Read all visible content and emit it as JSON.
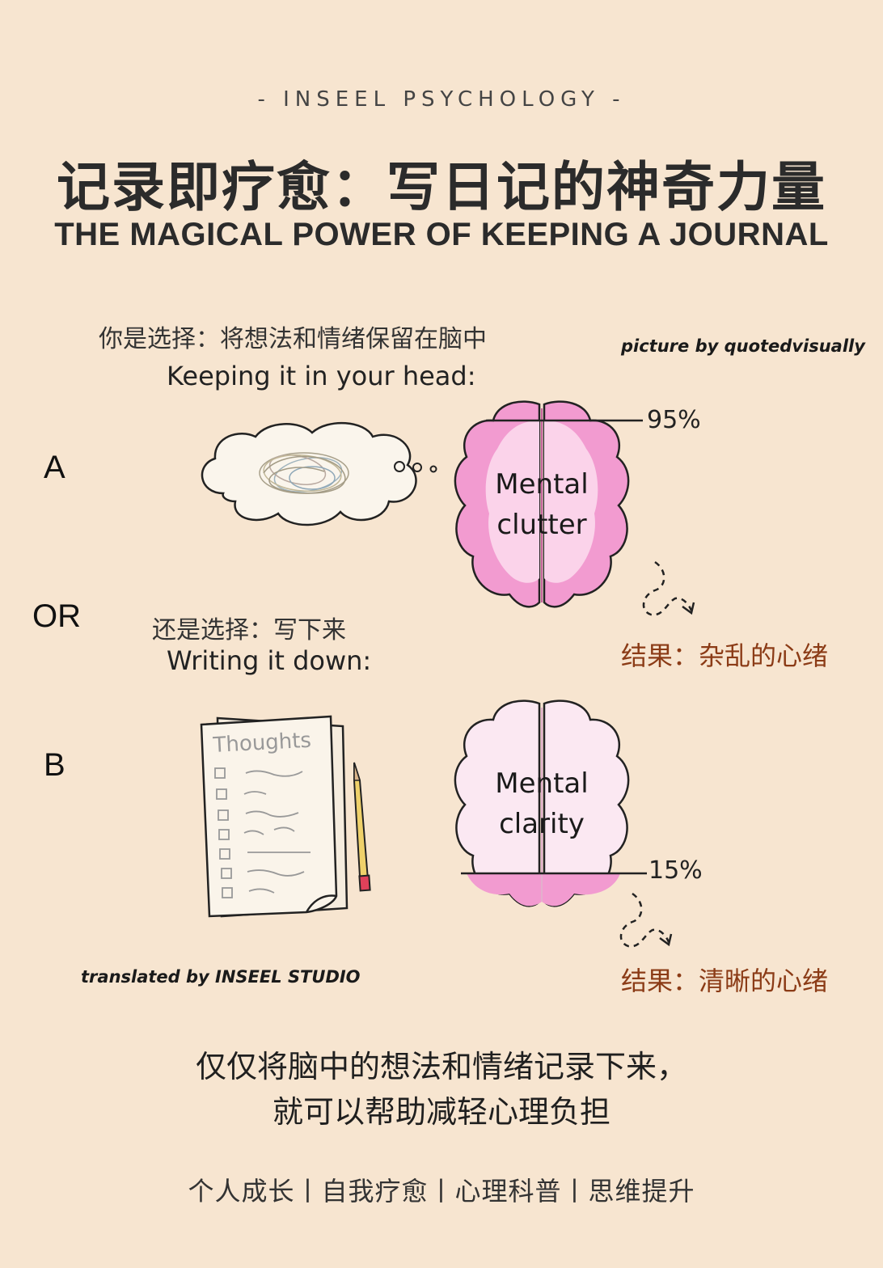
{
  "header": {
    "brand": "- INSEEL PSYCHOLOGY -",
    "title_zh": "记录即疗愈：写日记的神奇力量",
    "title_en": "THE MAGICAL POWER OF KEEPING A JOURNAL"
  },
  "credits": {
    "picture": "picture by quotedvisually",
    "translation": "translated by INSEEL STUDIO"
  },
  "option_a": {
    "letter": "A",
    "caption_zh": "你是选择：将想法和情绪保留在脑中",
    "caption_en": "Keeping it in your head:",
    "brain_line1": "Mental",
    "brain_line2": "clutter",
    "percent": "95%",
    "percent_value": 95,
    "result": "结果：杂乱的心绪",
    "brain_color": "#f29bd0"
  },
  "or_label": "OR",
  "option_b": {
    "letter": "B",
    "caption_zh": "还是选择：写下来",
    "caption_en": "Writing it down:",
    "paper_title": "Thoughts",
    "brain_line1": "Mental",
    "brain_line2": "clarity",
    "percent": "15%",
    "percent_value": 15,
    "result": "结果：清晰的心绪",
    "brain_color": "#fbe8f2"
  },
  "summary": {
    "line1": "仅仅将脑中的想法和情绪记录下来，",
    "line2": "就可以帮助减轻心理负担"
  },
  "tags": "个人成长丨自我疗愈丨心理科普丨思维提升",
  "colors": {
    "background": "#f7e5d0",
    "result_text": "#8b3b16",
    "brain_pink": "#f29bd0"
  }
}
